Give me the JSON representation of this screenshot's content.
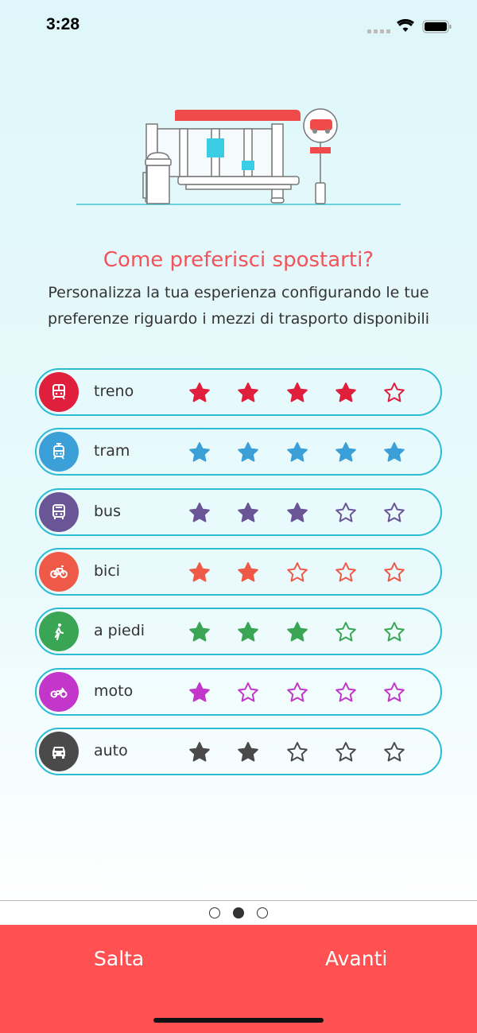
{
  "status": {
    "time": "3:28"
  },
  "title": "Come preferisci spostarti?",
  "subtitle_lines": [
    "Personalizza la tua esperienza configurando le tue",
    "preferenze riguardo i mezzi di trasporto disponibili"
  ],
  "modes": [
    {
      "label": "treno",
      "icon": "train-icon",
      "color": "#e01f3d",
      "rating": 4,
      "max": 5
    },
    {
      "label": "tram",
      "icon": "tram-icon",
      "color": "#3b9fd8",
      "rating": 5,
      "max": 5
    },
    {
      "label": "bus",
      "icon": "bus-icon",
      "color": "#6a5597",
      "rating": 3,
      "max": 5
    },
    {
      "label": "bici",
      "icon": "bicycle-icon",
      "color": "#ef5a48",
      "rating": 2,
      "max": 5
    },
    {
      "label": "a piedi",
      "icon": "walking-icon",
      "color": "#3aa655",
      "rating": 3,
      "max": 5
    },
    {
      "label": "moto",
      "icon": "motorcycle-icon",
      "color": "#c236ca",
      "rating": 1,
      "max": 5
    },
    {
      "label": "auto",
      "icon": "car-icon",
      "color": "#4a4a4a",
      "rating": 2,
      "max": 5
    }
  ],
  "pager": {
    "pages": 3,
    "current": 2
  },
  "footer": {
    "skip": "Salta",
    "next": "Avanti"
  }
}
